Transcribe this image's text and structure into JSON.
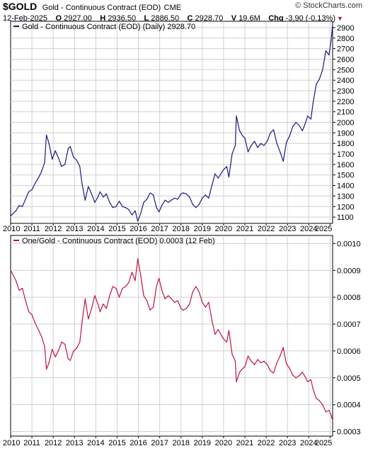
{
  "header": {
    "symbol": "$GOLD",
    "description": "Gold - Continuous Contract (EOD)",
    "exchange": "CME",
    "brand": "© StockCharts.com",
    "date": "12-Feb-2025",
    "open_label": "O",
    "open": "2927.00",
    "high_label": "H",
    "high": "2936.50",
    "low_label": "L",
    "low": "2886.50",
    "close_label": "C",
    "close": "2928.70",
    "volume_label": "V",
    "volume": "19.6M",
    "change_label": "Chg",
    "change": "-3.90 (-0.13%)"
  },
  "colors": {
    "top_line": "#1a1a80",
    "bottom_line": "#c0143c",
    "grid": "#d0d0d0",
    "frame": "#000000"
  },
  "chart_data": [
    {
      "type": "line",
      "legend": "Gold - Continuous Contract (EOD) (Daily) 2928.70",
      "x_ticks": [
        "2010",
        "2011",
        "2012",
        "2013",
        "2014",
        "2015",
        "2016",
        "2017",
        "2018",
        "2019",
        "2020",
        "2021",
        "2022",
        "2023",
        "2024",
        "2025"
      ],
      "y_ticks": [
        1100,
        1200,
        1300,
        1400,
        1500,
        1600,
        1700,
        1800,
        1900,
        2000,
        2100,
        2200,
        2300,
        2400,
        2500,
        2600,
        2700,
        2800,
        2900
      ],
      "ylim": [
        1040,
        2960
      ],
      "xlim": [
        2010.0,
        2025.12
      ],
      "grid": true,
      "x": [
        2010.0,
        2010.1,
        2010.25,
        2010.4,
        2010.55,
        2010.7,
        2010.85,
        2011.0,
        2011.15,
        2011.3,
        2011.45,
        2011.6,
        2011.68,
        2011.8,
        2011.95,
        2012.1,
        2012.25,
        2012.4,
        2012.55,
        2012.7,
        2012.8,
        2012.95,
        2013.1,
        2013.25,
        2013.35,
        2013.5,
        2013.65,
        2013.8,
        2013.95,
        2014.1,
        2014.2,
        2014.35,
        2014.5,
        2014.65,
        2014.8,
        2014.95,
        2015.1,
        2015.25,
        2015.4,
        2015.55,
        2015.7,
        2015.85,
        2015.97,
        2016.1,
        2016.25,
        2016.4,
        2016.55,
        2016.7,
        2016.85,
        2016.97,
        2017.1,
        2017.25,
        2017.4,
        2017.55,
        2017.7,
        2017.85,
        2018.0,
        2018.1,
        2018.25,
        2018.4,
        2018.55,
        2018.7,
        2018.85,
        2019.0,
        2019.15,
        2019.3,
        2019.45,
        2019.6,
        2019.75,
        2019.9,
        2020.0,
        2020.15,
        2020.25,
        2020.4,
        2020.55,
        2020.6,
        2020.75,
        2020.9,
        2021.0,
        2021.15,
        2021.3,
        2021.45,
        2021.6,
        2021.75,
        2021.9,
        2022.05,
        2022.2,
        2022.35,
        2022.5,
        2022.65,
        2022.8,
        2022.95,
        2023.1,
        2023.25,
        2023.4,
        2023.55,
        2023.7,
        2023.82,
        2023.95,
        2024.1,
        2024.2,
        2024.35,
        2024.5,
        2024.65,
        2024.8,
        2024.95,
        2025.05,
        2025.12
      ],
      "y": [
        1110,
        1130,
        1160,
        1210,
        1200,
        1270,
        1340,
        1360,
        1420,
        1470,
        1530,
        1620,
        1880,
        1800,
        1650,
        1730,
        1660,
        1580,
        1600,
        1750,
        1770,
        1670,
        1640,
        1580,
        1420,
        1260,
        1390,
        1320,
        1240,
        1290,
        1340,
        1290,
        1320,
        1240,
        1190,
        1200,
        1250,
        1200,
        1190,
        1170,
        1120,
        1160,
        1060,
        1130,
        1240,
        1270,
        1330,
        1310,
        1190,
        1150,
        1210,
        1260,
        1240,
        1260,
        1280,
        1270,
        1320,
        1330,
        1320,
        1290,
        1220,
        1190,
        1220,
        1280,
        1310,
        1280,
        1400,
        1510,
        1470,
        1520,
        1550,
        1580,
        1480,
        1700,
        1780,
        2060,
        1920,
        1870,
        1850,
        1720,
        1780,
        1820,
        1760,
        1800,
        1780,
        1820,
        1900,
        1930,
        1800,
        1720,
        1630,
        1810,
        1870,
        1960,
        2000,
        1970,
        1920,
        1980,
        2060,
        2030,
        2180,
        2360,
        2410,
        2500,
        2680,
        2640,
        2780,
        2930
      ]
    },
    {
      "type": "line",
      "legend": "One/Gold - Continuous Contract (EOD) 0.0003 (12 Feb)",
      "x_ticks": [
        "2010",
        "2011",
        "2012",
        "2013",
        "2014",
        "2015",
        "2016",
        "2017",
        "2018",
        "2019",
        "2020",
        "2021",
        "2022",
        "2023",
        "2024",
        "2025"
      ],
      "y_ticks": [
        "0.0003",
        "0.0004",
        "0.0005",
        "0.0006",
        "0.0007",
        "0.0008",
        "0.0009",
        "0.0010"
      ],
      "ylim": [
        0.000283,
        0.00103
      ],
      "xlim": [
        2010.0,
        2025.12
      ],
      "scale": "reciprocal",
      "grid": true,
      "x": [
        2010.0,
        2010.1,
        2010.25,
        2010.4,
        2010.55,
        2010.7,
        2010.85,
        2011.0,
        2011.15,
        2011.3,
        2011.45,
        2011.6,
        2011.68,
        2011.8,
        2011.95,
        2012.1,
        2012.25,
        2012.4,
        2012.55,
        2012.7,
        2012.8,
        2012.95,
        2013.1,
        2013.25,
        2013.35,
        2013.5,
        2013.65,
        2013.8,
        2013.95,
        2014.1,
        2014.2,
        2014.35,
        2014.5,
        2014.65,
        2014.8,
        2014.95,
        2015.1,
        2015.25,
        2015.4,
        2015.55,
        2015.7,
        2015.85,
        2015.97,
        2016.1,
        2016.25,
        2016.4,
        2016.55,
        2016.7,
        2016.85,
        2016.97,
        2017.1,
        2017.25,
        2017.4,
        2017.55,
        2017.7,
        2017.85,
        2018.0,
        2018.1,
        2018.25,
        2018.4,
        2018.55,
        2018.7,
        2018.85,
        2019.0,
        2019.15,
        2019.3,
        2019.45,
        2019.6,
        2019.75,
        2019.9,
        2020.0,
        2020.15,
        2020.25,
        2020.4,
        2020.55,
        2020.6,
        2020.75,
        2020.9,
        2021.0,
        2021.15,
        2021.3,
        2021.45,
        2021.6,
        2021.75,
        2021.9,
        2022.05,
        2022.2,
        2022.35,
        2022.5,
        2022.65,
        2022.8,
        2022.95,
        2023.1,
        2023.25,
        2023.4,
        2023.55,
        2023.7,
        2023.82,
        2023.95,
        2024.1,
        2024.2,
        2024.35,
        2024.5,
        2024.65,
        2024.8,
        2024.95,
        2025.05,
        2025.12
      ],
      "y": [
        0.000901,
        0.000885,
        0.000862,
        0.000826,
        0.000833,
        0.000787,
        0.000746,
        0.000735,
        0.000704,
        0.00068,
        0.000654,
        0.000617,
        0.000532,
        0.000556,
        0.000606,
        0.000578,
        0.000602,
        0.000633,
        0.000625,
        0.000571,
        0.000565,
        0.000599,
        0.00061,
        0.000633,
        0.000704,
        0.000794,
        0.000719,
        0.000758,
        0.000806,
        0.000775,
        0.000746,
        0.000775,
        0.000758,
        0.000806,
        0.00084,
        0.000833,
        0.0008,
        0.000833,
        0.00084,
        0.000855,
        0.000893,
        0.000862,
        0.000943,
        0.000885,
        0.000806,
        0.000787,
        0.000752,
        0.000763,
        0.00084,
        0.00087,
        0.000826,
        0.000794,
        0.000806,
        0.000794,
        0.000781,
        0.000787,
        0.000758,
        0.000752,
        0.000758,
        0.000775,
        0.00082,
        0.00084,
        0.00082,
        0.000781,
        0.000763,
        0.000781,
        0.000714,
        0.000662,
        0.00068,
        0.000658,
        0.000645,
        0.000633,
        0.000676,
        0.000588,
        0.000562,
        0.000485,
        0.000521,
        0.000535,
        0.000541,
        0.000581,
        0.000562,
        0.000549,
        0.000568,
        0.000556,
        0.000562,
        0.000549,
        0.000526,
        0.000518,
        0.000556,
        0.000581,
        0.000613,
        0.000552,
        0.000535,
        0.00051,
        0.0005,
        0.000508,
        0.000521,
        0.000505,
        0.000485,
        0.000493,
        0.000459,
        0.000424,
        0.000415,
        0.0004,
        0.000373,
        0.000379,
        0.00036,
        0.000341
      ]
    }
  ]
}
